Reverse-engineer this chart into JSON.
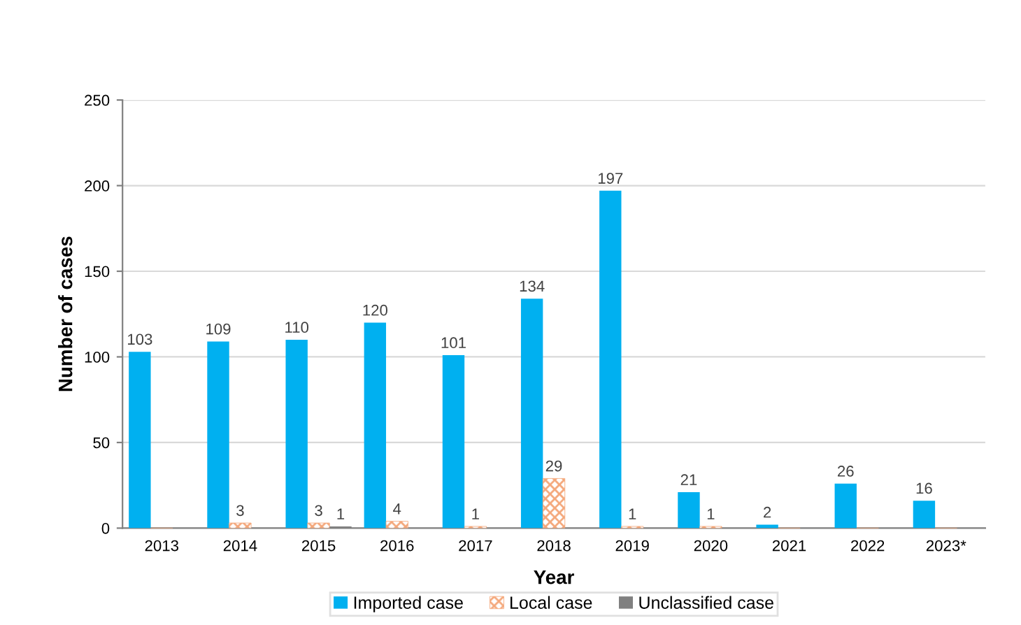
{
  "chart_data": {
    "type": "bar",
    "xlabel": "Year",
    "ylabel": "Number of cases",
    "categories": [
      "2013",
      "2014",
      "2015",
      "2016",
      "2017",
      "2018",
      "2019",
      "2020",
      "2021",
      "2022",
      "2023*"
    ],
    "series": [
      {
        "name": "Imported case",
        "color": "#00b0f0",
        "values": [
          103,
          109,
          110,
          120,
          101,
          134,
          197,
          21,
          2,
          26,
          16
        ],
        "value_labels": [
          "103",
          "109",
          "110",
          "120",
          "101",
          "134",
          "197",
          "21",
          "2",
          "26",
          "16"
        ]
      },
      {
        "name": "Local case",
        "color": "#f4a77a",
        "values": [
          0,
          3,
          3,
          4,
          1,
          29,
          1,
          1,
          0,
          0,
          0
        ],
        "value_labels": [
          null,
          "3",
          "3",
          "4",
          "1",
          "29",
          "1",
          "1",
          null,
          null,
          null
        ]
      },
      {
        "name": "Unclassified case",
        "color": "#808080",
        "values": [
          0,
          0,
          1,
          0,
          0,
          0,
          0,
          0,
          0,
          0,
          0
        ],
        "value_labels": [
          null,
          null,
          "1",
          null,
          null,
          null,
          null,
          null,
          null,
          null,
          null
        ]
      }
    ],
    "ylim": [
      0,
      250
    ],
    "yticks": [
      0,
      50,
      100,
      150,
      200,
      250
    ],
    "grid": "y",
    "legend": "bottom"
  }
}
